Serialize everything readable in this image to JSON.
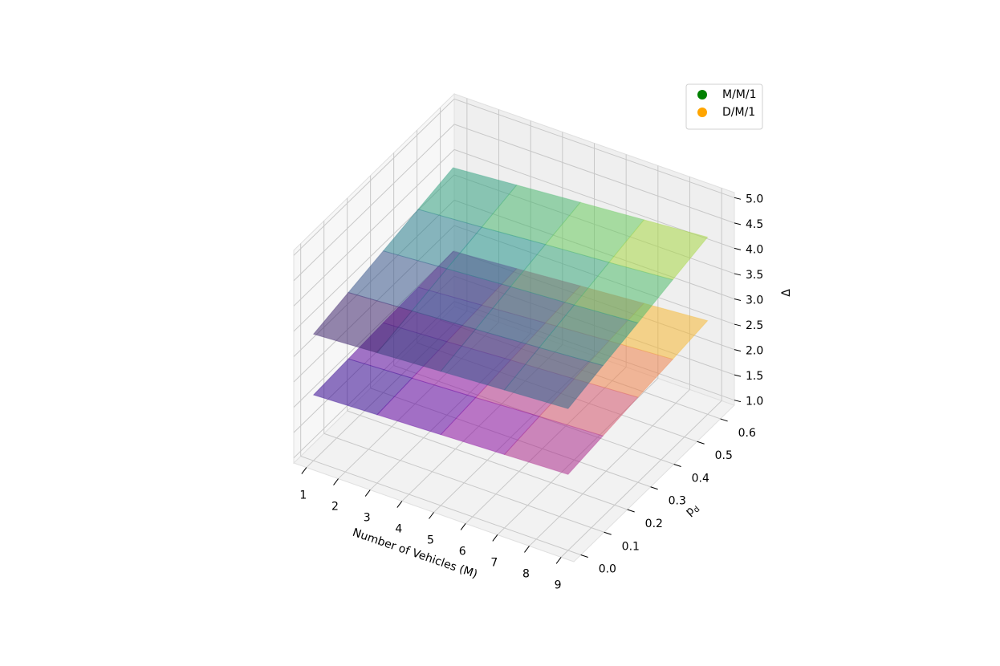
{
  "chart_data": {
    "type": "surface3d",
    "xlabel": "Number of Vehicles (M)",
    "ylabel": {
      "text": "p",
      "subscript": "d"
    },
    "zlabel": "Δ",
    "x": [
      1,
      3,
      5,
      7,
      9
    ],
    "y": [
      0,
      0.15,
      0.3,
      0.45,
      0.6
    ],
    "xlim": [
      0.6,
      9.4
    ],
    "ylim": [
      -0.03,
      0.66
    ],
    "zlim": [
      0.9,
      5.1
    ],
    "xticks": [
      1,
      2,
      3,
      4,
      5,
      6,
      7,
      8,
      9
    ],
    "yticks": [
      {
        "value": 0,
        "label": "0.0"
      },
      0.1,
      0.2,
      0.3,
      0.4,
      0.5,
      0.6
    ],
    "zticks": [
      {
        "value": 1,
        "label": "1.0"
      },
      1.5,
      {
        "value": 2,
        "label": "2.0"
      },
      2.5,
      {
        "value": 3,
        "label": "3.0"
      },
      3.5,
      {
        "value": 4,
        "label": "4.0"
      },
      4.5,
      {
        "value": 5,
        "label": "5.0"
      }
    ],
    "grid": true,
    "legend": "upper right",
    "series": [
      {
        "name": "M/M/1",
        "color": "green",
        "colormap": [
          "#440154",
          "#3b528b",
          "#21918c",
          "#5ec962",
          "#fde725"
        ],
        "z": [
          [
            3.4,
            3.475,
            3.55,
            3.625,
            3.7
          ],
          [
            3.55,
            3.63,
            3.71,
            3.79,
            3.88
          ],
          [
            3.7,
            3.79,
            3.88,
            3.96,
            4.05
          ],
          [
            3.85,
            3.94,
            4.04,
            4.13,
            4.23
          ],
          [
            4.0,
            4.1,
            4.2,
            4.3,
            4.4
          ]
        ]
      },
      {
        "name": "D/M/1",
        "color": "orange",
        "colormap": [
          "#0d0887",
          "#7e03a8",
          "#cc4778",
          "#f89540",
          "#f0f921"
        ],
        "z": [
          [
            2.2,
            2.25,
            2.3,
            2.35,
            2.4
          ],
          [
            2.24,
            2.3,
            2.36,
            2.43,
            2.49
          ],
          [
            2.28,
            2.35,
            2.43,
            2.5,
            2.58
          ],
          [
            2.31,
            2.4,
            2.49,
            2.58,
            2.66
          ],
          [
            2.35,
            2.45,
            2.55,
            2.65,
            2.75
          ]
        ]
      }
    ]
  }
}
